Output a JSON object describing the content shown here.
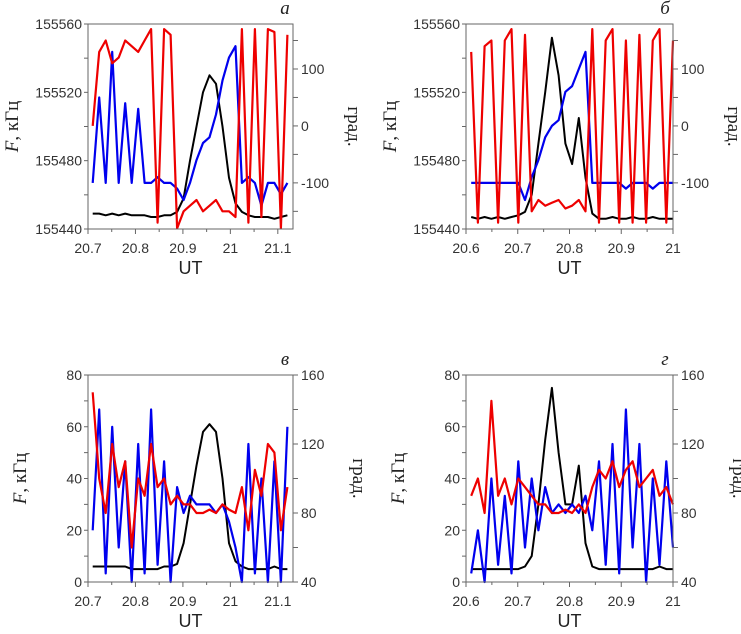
{
  "chart_data": [
    {
      "type": "line",
      "panel_label": "а",
      "xlabel": "UT",
      "ylabel_var": "F",
      "ylabel_unit": ", кГц",
      "y2label": "град.",
      "xlim": [
        20.7,
        21.132
      ],
      "ylim": [
        155440,
        155560
      ],
      "y2lim": [
        -181,
        179
      ],
      "xticks": [
        "20.7",
        "20.8",
        "20.9",
        "21",
        "21.1"
      ],
      "yticks": [
        "155440",
        "155480",
        "155520",
        "155560"
      ],
      "y2ticks": [
        "-100",
        "0",
        "100"
      ],
      "yminor": 20,
      "y2minor": 50,
      "x_start": 20.71,
      "x_step": 0.01367,
      "series": [
        {
          "name": "F",
          "axis": "left",
          "color": "#000000",
          "values": [
            155449,
            155449,
            155448,
            155449,
            155448,
            155449,
            155448,
            155448,
            155448,
            155447,
            155447,
            155448,
            155448,
            155450,
            155458,
            155480,
            155500,
            155520,
            155530,
            155525,
            155500,
            155470,
            155455,
            155450,
            155448,
            155447,
            155447,
            155447,
            155446,
            155447,
            155448
          ]
        },
        {
          "name": "blue",
          "axis": "right",
          "color": "#0000ee",
          "values": [
            -100,
            50,
            -100,
            130,
            -100,
            40,
            -100,
            30,
            -100,
            -100,
            -90,
            -100,
            -100,
            -110,
            -130,
            -100,
            -60,
            -30,
            -20,
            20,
            80,
            120,
            140,
            -100,
            -90,
            -100,
            -140,
            -100,
            -100,
            -120,
            -100
          ]
        },
        {
          "name": "red",
          "axis": "right",
          "color": "#ee0000",
          "values": [
            0,
            130,
            150,
            110,
            120,
            150,
            140,
            130,
            150,
            170,
            -170,
            170,
            160,
            -180,
            -150,
            -140,
            -130,
            -150,
            -140,
            -130,
            -150,
            -150,
            -160,
            170,
            -170,
            170,
            -160,
            170,
            165,
            -180,
            160
          ]
        }
      ]
    },
    {
      "type": "line",
      "panel_label": "б",
      "xlabel": "UT",
      "ylabel_var": "F",
      "ylabel_unit": ", кГц",
      "y2label": "град.",
      "xlim": [
        20.6,
        21.0
      ],
      "ylim": [
        155440,
        155560
      ],
      "y2lim": [
        -181,
        179
      ],
      "xticks": [
        "20.6",
        "20.7",
        "20.8",
        "20.9",
        "21"
      ],
      "yticks": [
        "155440",
        "155480",
        "155520",
        "155560"
      ],
      "y2ticks": [
        "-100",
        "0",
        "100"
      ],
      "yminor": 20,
      "y2minor": 50,
      "x_start": 20.61,
      "x_step": 0.013,
      "series": [
        {
          "name": "F",
          "axis": "left",
          "color": "#000000",
          "values": [
            155447,
            155446,
            155447,
            155446,
            155447,
            155446,
            155447,
            155448,
            155450,
            155460,
            155490,
            155520,
            155552,
            155530,
            155490,
            155478,
            155505,
            155470,
            155449,
            155446,
            155446,
            155447,
            155446,
            155446,
            155447,
            155446,
            155446,
            155447,
            155446,
            155446,
            155446
          ]
        },
        {
          "name": "blue",
          "axis": "right",
          "color": "#0000ee",
          "values": [
            -100,
            -100,
            -100,
            -100,
            -100,
            -100,
            -100,
            -100,
            -130,
            -90,
            -60,
            -20,
            0,
            10,
            60,
            70,
            100,
            130,
            -100,
            -100,
            -100,
            -100,
            -100,
            -110,
            -100,
            -100,
            -100,
            -110,
            -100,
            -100,
            -100
          ]
        },
        {
          "name": "red",
          "axis": "right",
          "color": "#ee0000",
          "values": [
            130,
            -170,
            140,
            150,
            -170,
            150,
            170,
            -170,
            160,
            -150,
            -130,
            -140,
            -135,
            -130,
            -145,
            -140,
            -130,
            -150,
            170,
            -170,
            150,
            170,
            -170,
            150,
            -170,
            160,
            -170,
            150,
            170,
            -170,
            150
          ]
        }
      ]
    },
    {
      "type": "line",
      "panel_label": "в",
      "xlabel": "UT",
      "ylabel_var": "F",
      "ylabel_unit": ", кГц",
      "y2label": "град.",
      "xlim": [
        20.7,
        21.132
      ],
      "ylim": [
        0,
        80
      ],
      "y2lim": [
        40,
        160
      ],
      "xticks": [
        "20.7",
        "20.8",
        "20.9",
        "21",
        "21.1"
      ],
      "yticks": [
        "0",
        "20",
        "40",
        "60",
        "80"
      ],
      "y2ticks": [
        "40",
        "80",
        "120",
        "160"
      ],
      "yminor": 10,
      "y2minor": 20,
      "x_start": 20.71,
      "x_step": 0.01367,
      "series": [
        {
          "name": "F",
          "axis": "left",
          "color": "#000000",
          "values": [
            6,
            6,
            6,
            6,
            6,
            6,
            5,
            5,
            5,
            5,
            5,
            6,
            6,
            7,
            15,
            30,
            45,
            58,
            61,
            58,
            40,
            15,
            8,
            6,
            5,
            5,
            5,
            5,
            6,
            5,
            5
          ]
        },
        {
          "name": "blue",
          "axis": "right",
          "color": "#0000ee",
          "values": [
            70,
            140,
            45,
            130,
            60,
            110,
            40,
            120,
            45,
            140,
            50,
            110,
            40,
            95,
            80,
            90,
            85,
            85,
            85,
            80,
            85,
            75,
            60,
            40,
            120,
            45,
            100,
            40,
            110,
            40,
            130
          ]
        },
        {
          "name": "red",
          "axis": "right",
          "color": "#ee0000",
          "values": [
            150,
            100,
            80,
            120,
            95,
            110,
            60,
            100,
            90,
            120,
            95,
            100,
            85,
            90,
            85,
            85,
            80,
            80,
            82,
            80,
            85,
            82,
            80,
            95,
            70,
            105,
            90,
            120,
            115,
            70,
            95
          ]
        }
      ]
    },
    {
      "type": "line",
      "panel_label": "г",
      "xlabel": "UT",
      "ylabel_var": "F",
      "ylabel_unit": ", кГц",
      "y2label": "град.",
      "xlim": [
        20.6,
        21.0
      ],
      "ylim": [
        0,
        80
      ],
      "y2lim": [
        40,
        160
      ],
      "xticks": [
        "20.6",
        "20.7",
        "20.8",
        "20.9",
        "21"
      ],
      "yticks": [
        "0",
        "20",
        "40",
        "60",
        "80"
      ],
      "y2ticks": [
        "40",
        "80",
        "120",
        "160"
      ],
      "yminor": 10,
      "y2minor": 20,
      "x_start": 20.61,
      "x_step": 0.013,
      "series": [
        {
          "name": "F",
          "axis": "left",
          "color": "#000000",
          "values": [
            5,
            5,
            5,
            5,
            5,
            5,
            5,
            5,
            6,
            10,
            30,
            55,
            75,
            50,
            30,
            30,
            45,
            15,
            6,
            5,
            5,
            5,
            5,
            5,
            5,
            5,
            5,
            5,
            6,
            5,
            5
          ]
        },
        {
          "name": "blue",
          "axis": "right",
          "color": "#0000ee",
          "values": [
            45,
            70,
            40,
            100,
            50,
            90,
            45,
            110,
            60,
            100,
            70,
            95,
            80,
            85,
            80,
            85,
            80,
            90,
            70,
            110,
            50,
            120,
            45,
            140,
            60,
            120,
            40,
            100,
            50,
            110,
            60
          ]
        },
        {
          "name": "red",
          "axis": "right",
          "color": "#ee0000",
          "values": [
            90,
            100,
            80,
            145,
            90,
            100,
            85,
            100,
            95,
            90,
            85,
            85,
            80,
            80,
            82,
            80,
            85,
            80,
            95,
            105,
            100,
            110,
            95,
            105,
            110,
            95,
            100,
            105,
            90,
            95,
            85
          ]
        }
      ]
    }
  ]
}
